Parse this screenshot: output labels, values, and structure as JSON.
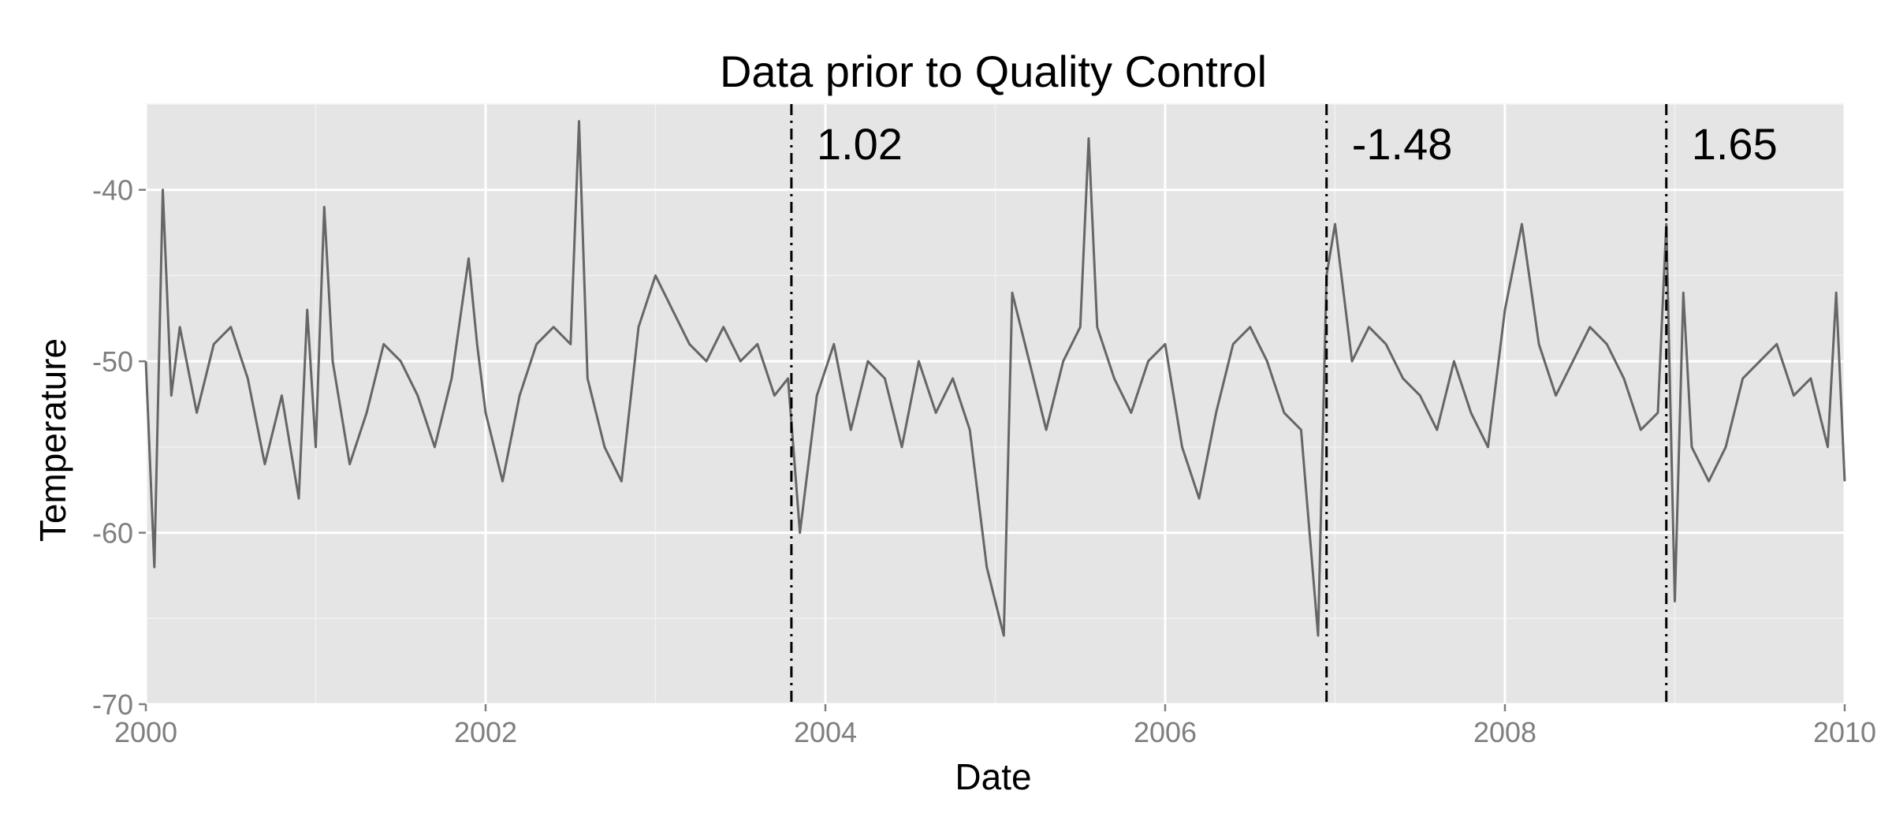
{
  "chart_data": {
    "type": "line",
    "title": "Data prior to Quality Control",
    "xlabel": "Date",
    "ylabel": "Temperature",
    "xlim": [
      2000.0,
      2010.0
    ],
    "ylim": [
      -70,
      -35
    ],
    "x_ticks": [
      "2000",
      "2002",
      "2004",
      "2006",
      "2008",
      "2010"
    ],
    "y_ticks": [
      "-70",
      "-60",
      "-50",
      "-40"
    ],
    "grid": true,
    "legend": "none",
    "colors": {
      "line": "#666666",
      "panel": "#e5e5e5",
      "grid": "#ffffff",
      "changepoint": "#000000"
    },
    "series_note": "",
    "series": [
      {
        "x": [
          2000.0,
          2000.05,
          2000.1,
          2000.15,
          2000.2,
          2000.3,
          2000.4,
          2000.5,
          2000.6,
          2000.7,
          2000.8,
          2000.9,
          2000.95,
          2001.0,
          2001.05,
          2001.1,
          2001.2,
          2001.3,
          2001.4,
          2001.5,
          2001.6,
          2001.7,
          2001.8,
          2001.9,
          2001.95,
          2002.0,
          2002.1,
          2002.2,
          2002.3,
          2002.4,
          2002.5,
          2002.55,
          2002.6,
          2002.7,
          2002.8,
          2002.9,
          2003.0,
          2003.1,
          2003.2,
          2003.3,
          2003.4,
          2003.5,
          2003.6,
          2003.7,
          2003.78,
          2003.85,
          2003.95,
          2004.05,
          2004.15,
          2004.25,
          2004.35,
          2004.45,
          2004.55,
          2004.65,
          2004.75,
          2004.85,
          2004.95,
          2005.05,
          2005.1,
          2005.2,
          2005.3,
          2005.4,
          2005.5,
          2005.55,
          2005.6,
          2005.7,
          2005.8,
          2005.9,
          2006.0,
          2006.1,
          2006.2,
          2006.3,
          2006.4,
          2006.5,
          2006.6,
          2006.7,
          2006.8,
          2006.9,
          2006.95,
          2007.0,
          2007.05,
          2007.1,
          2007.2,
          2007.3,
          2007.4,
          2007.5,
          2007.6,
          2007.7,
          2007.8,
          2007.9,
          2008.0,
          2008.1,
          2008.2,
          2008.3,
          2008.4,
          2008.5,
          2008.6,
          2008.7,
          2008.8,
          2008.9,
          2008.95,
          2009.0,
          2009.05,
          2009.1,
          2009.2,
          2009.3,
          2009.4,
          2009.5,
          2009.6,
          2009.7,
          2009.8,
          2009.9,
          2009.95,
          2010.0
        ],
        "y": [
          -50,
          -62,
          -40,
          -52,
          -48,
          -53,
          -49,
          -48,
          -51,
          -56,
          -52,
          -58,
          -47,
          -55,
          -41,
          -50,
          -56,
          -53,
          -49,
          -50,
          -52,
          -55,
          -51,
          -44,
          -49,
          -53,
          -57,
          -52,
          -49,
          -48,
          -49,
          -36,
          -51,
          -55,
          -57,
          -48,
          -45,
          -47,
          -49,
          -50,
          -48,
          -50,
          -49,
          -52,
          -51,
          -60,
          -52,
          -49,
          -54,
          -50,
          -51,
          -55,
          -50,
          -53,
          -51,
          -54,
          -62,
          -66,
          -46,
          -50,
          -54,
          -50,
          -48,
          -37,
          -48,
          -51,
          -53,
          -50,
          -49,
          -55,
          -58,
          -53,
          -49,
          -48,
          -50,
          -53,
          -54,
          -66,
          -45,
          -42,
          -46,
          -50,
          -48,
          -49,
          -51,
          -52,
          -54,
          -50,
          -53,
          -55,
          -47,
          -42,
          -49,
          -52,
          -50,
          -48,
          -49,
          -51,
          -54,
          -53,
          -42,
          -64,
          -46,
          -55,
          -57,
          -55,
          -51,
          -50,
          -49,
          -52,
          -51,
          -55,
          -46,
          -57
        ]
      }
    ],
    "changepoints": [
      {
        "x": 2003.8,
        "label": "1.02"
      },
      {
        "x": 2006.95,
        "label": "-1.48"
      },
      {
        "x": 2008.95,
        "label": "1.65"
      }
    ]
  }
}
